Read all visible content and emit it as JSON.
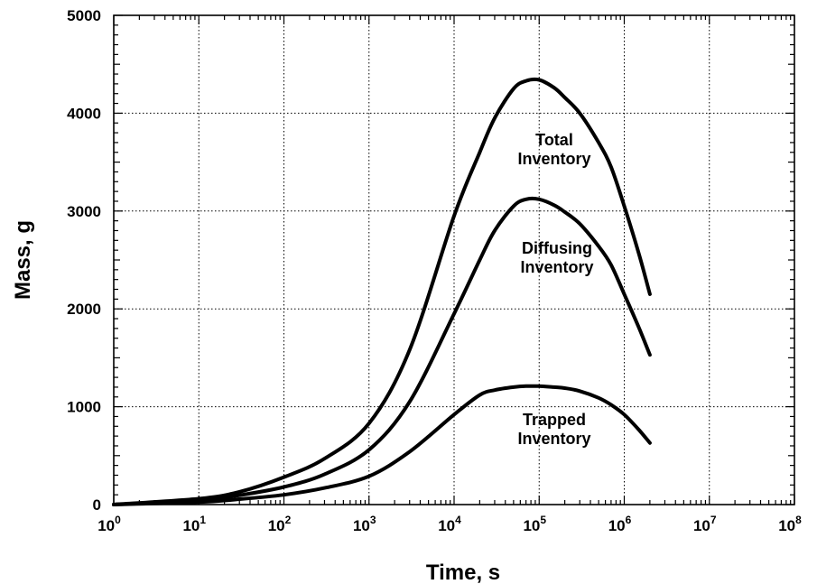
{
  "chart_data": {
    "type": "line",
    "title": "",
    "xlabel": "Time,  s",
    "ylabel": "Mass,  g",
    "x_scale": "log",
    "xlim": [
      1,
      100000000
    ],
    "ylim": [
      0,
      5000
    ],
    "grid": true,
    "x_ticks": [
      {
        "base": "10",
        "exp": "0"
      },
      {
        "base": "10",
        "exp": "1"
      },
      {
        "base": "10",
        "exp": "2"
      },
      {
        "base": "10",
        "exp": "3"
      },
      {
        "base": "10",
        "exp": "4"
      },
      {
        "base": "10",
        "exp": "5"
      },
      {
        "base": "10",
        "exp": "6"
      },
      {
        "base": "10",
        "exp": "7"
      },
      {
        "base": "10",
        "exp": "8"
      }
    ],
    "y_ticks": [
      "0",
      "1000",
      "2000",
      "3000",
      "4000",
      "5000"
    ],
    "series": [
      {
        "label_lines": [
          "Total",
          "Inventory"
        ],
        "x": [
          1,
          10,
          30,
          100,
          300,
          1000,
          3000,
          10000,
          20000,
          30000,
          50000,
          70000,
          100000,
          150000,
          200000,
          300000,
          500000,
          700000,
          1000000,
          1500000,
          2000000
        ],
        "y": [
          0,
          60,
          130,
          280,
          470,
          830,
          1580,
          2950,
          3600,
          3950,
          4250,
          4330,
          4340,
          4260,
          4160,
          4000,
          3700,
          3450,
          3050,
          2550,
          2150
        ]
      },
      {
        "label_lines": [
          "Diffusing",
          "Inventory"
        ],
        "x": [
          1,
          10,
          30,
          100,
          300,
          1000,
          3000,
          10000,
          20000,
          30000,
          50000,
          70000,
          100000,
          150000,
          200000,
          300000,
          500000,
          700000,
          1000000,
          1500000,
          2000000
        ],
        "y": [
          0,
          40,
          95,
          180,
          310,
          560,
          1050,
          1950,
          2500,
          2800,
          3050,
          3120,
          3120,
          3060,
          2990,
          2870,
          2640,
          2450,
          2150,
          1800,
          1530
        ]
      },
      {
        "label_lines": [
          "Trapped",
          "Inventory"
        ],
        "x": [
          1,
          10,
          30,
          100,
          300,
          1000,
          3000,
          10000,
          20000,
          30000,
          50000,
          70000,
          100000,
          150000,
          200000,
          300000,
          500000,
          700000,
          1000000,
          1500000,
          2000000
        ],
        "y": [
          0,
          25,
          55,
          100,
          170,
          290,
          540,
          920,
          1120,
          1170,
          1200,
          1210,
          1210,
          1200,
          1190,
          1160,
          1090,
          1020,
          920,
          760,
          630
        ]
      }
    ]
  }
}
